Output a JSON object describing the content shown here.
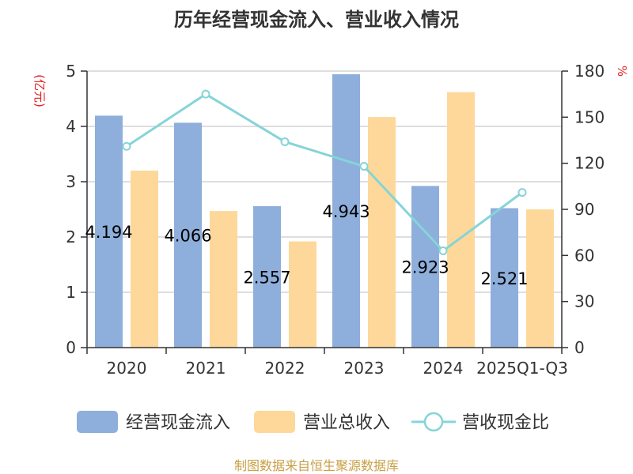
{
  "chart_data": {
    "type": "bar",
    "title": "历年经营现金流入、营业收入情况",
    "categories": [
      "2020",
      "2021",
      "2022",
      "2023",
      "2024",
      "2025Q1-Q3"
    ],
    "ylabel_left": "(亿元)",
    "ylabel_right": "%",
    "ylim_left": [
      0,
      5
    ],
    "ylim_right": [
      0,
      180
    ],
    "yticks_left": [
      0,
      1,
      2,
      3,
      4,
      5
    ],
    "yticks_right": [
      0,
      30,
      60,
      90,
      120,
      150,
      180
    ],
    "grid": true,
    "legend_position": "bottom",
    "series": [
      {
        "name": "经营现金流入",
        "type": "bar",
        "axis": "left",
        "color": "#8eaedb",
        "values": [
          4.194,
          4.066,
          2.557,
          4.943,
          2.923,
          2.521
        ],
        "labels": [
          "4.194",
          "4.066",
          "2.557",
          "4.943",
          "2.923",
          "2.521"
        ]
      },
      {
        "name": "营业总收入",
        "type": "bar",
        "axis": "left",
        "color": "#fdd89a",
        "values": [
          3.2,
          2.47,
          1.92,
          4.17,
          4.62,
          2.5
        ]
      },
      {
        "name": "营收现金比",
        "type": "line",
        "axis": "right",
        "color": "#86d4d8",
        "values": [
          131,
          165,
          134,
          118,
          63,
          101
        ]
      }
    ],
    "source": "制图数据来自恒生聚源数据库"
  }
}
